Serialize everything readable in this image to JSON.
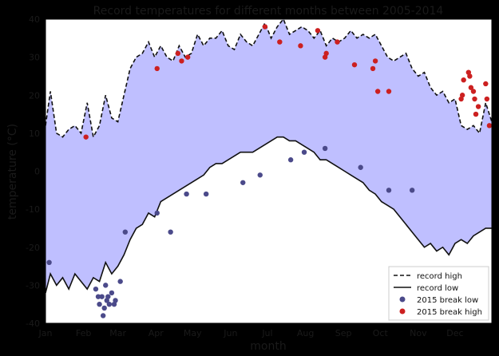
{
  "chart_data": {
    "type": "line",
    "title": "Record temperatures for different months between 2005-2014",
    "xlabel": "month",
    "ylabel": "temperature (°C)",
    "ylim": [
      -40,
      40
    ],
    "y_ticks": [
      "-40",
      "-30",
      "-20",
      "-10",
      "0",
      "10",
      "20",
      "30",
      "40"
    ],
    "categories": [
      "Jan",
      "Feb",
      "Mar",
      "Apr",
      "May",
      "Jun",
      "Jul",
      "Aug",
      "Sep",
      "Oct",
      "Nov",
      "Dec"
    ],
    "x_range_days": [
      1,
      365
    ],
    "fill_color": "#bfbfff",
    "series": [
      {
        "name": "record high",
        "style": "dashed",
        "color": "#111111",
        "x": [
          1,
          5,
          10,
          15,
          20,
          25,
          30,
          35,
          40,
          45,
          50,
          55,
          60,
          65,
          70,
          75,
          80,
          85,
          90,
          95,
          100,
          105,
          110,
          115,
          120,
          125,
          130,
          135,
          140,
          145,
          150,
          155,
          160,
          165,
          170,
          175,
          180,
          185,
          190,
          195,
          200,
          205,
          210,
          215,
          220,
          225,
          230,
          235,
          240,
          245,
          250,
          255,
          260,
          265,
          270,
          275,
          280,
          285,
          290,
          295,
          300,
          305,
          310,
          315,
          320,
          325,
          330,
          335,
          340,
          345,
          350,
          355,
          360,
          365
        ],
        "values": [
          12,
          21,
          10,
          9,
          11,
          12,
          10,
          18,
          9,
          12,
          20,
          14,
          13,
          20,
          27,
          30,
          31,
          34,
          30,
          33,
          30,
          29,
          33,
          30,
          31,
          36,
          33,
          35,
          35,
          37,
          33,
          32,
          36,
          34,
          33,
          36,
          39,
          35,
          38,
          40,
          36,
          37,
          38,
          37,
          35,
          37,
          33,
          35,
          34,
          35,
          37,
          35,
          36,
          35,
          36,
          33,
          30,
          29,
          30,
          31,
          27,
          25,
          26,
          22,
          20,
          21,
          18,
          19,
          12,
          11,
          12,
          10,
          18,
          13
        ]
      },
      {
        "name": "record low",
        "style": "solid",
        "color": "#111111",
        "x": [
          1,
          5,
          10,
          15,
          20,
          25,
          30,
          35,
          40,
          45,
          50,
          55,
          60,
          65,
          70,
          75,
          80,
          85,
          90,
          95,
          100,
          105,
          110,
          115,
          120,
          125,
          130,
          135,
          140,
          145,
          150,
          155,
          160,
          165,
          170,
          175,
          180,
          185,
          190,
          195,
          200,
          205,
          210,
          215,
          220,
          225,
          230,
          235,
          240,
          245,
          250,
          255,
          260,
          265,
          270,
          275,
          280,
          285,
          290,
          295,
          300,
          305,
          310,
          315,
          320,
          325,
          330,
          335,
          340,
          345,
          350,
          355,
          360,
          365
        ],
        "values": [
          -32,
          -27,
          -30,
          -28,
          -31,
          -27,
          -29,
          -31,
          -28,
          -29,
          -24,
          -27,
          -25,
          -22,
          -18,
          -15,
          -14,
          -11,
          -12,
          -8,
          -7,
          -6,
          -5,
          -4,
          -3,
          -2,
          -1,
          1,
          2,
          2,
          3,
          4,
          5,
          5,
          5,
          6,
          7,
          8,
          9,
          9,
          8,
          8,
          7,
          6,
          5,
          3,
          3,
          2,
          1,
          0,
          -1,
          -2,
          -3,
          -5,
          -6,
          -8,
          -9,
          -10,
          -12,
          -14,
          -16,
          -18,
          -20,
          -19,
          -21,
          -20,
          -22,
          -19,
          -18,
          -19,
          -17,
          -16,
          -15,
          -15
        ]
      },
      {
        "name": "2015 break low",
        "type": "scatter",
        "color": "#4b4a8a",
        "x": [
          4,
          42,
          44,
          45,
          47,
          48,
          49,
          50,
          51,
          52,
          53,
          55,
          57,
          58,
          62,
          66,
          92,
          103,
          116,
          132,
          162,
          176,
          201,
          212,
          229,
          258,
          281,
          300
        ],
        "values": [
          -24,
          -31,
          -33,
          -35,
          -33,
          -38,
          -36,
          -30,
          -34,
          -33,
          -35,
          -32,
          -35,
          -34,
          -29,
          -16,
          -11,
          -16,
          -6,
          -6,
          -3,
          -1,
          3,
          5,
          6,
          1,
          -5,
          -5
        ]
      },
      {
        "name": "2015 break high",
        "type": "scatter",
        "color": "#cc2020",
        "x": [
          34,
          92,
          109,
          112,
          117,
          180,
          192,
          209,
          223,
          229,
          230,
          239,
          253,
          268,
          270,
          272,
          281,
          340,
          341,
          342,
          346,
          347,
          348,
          350,
          351,
          352,
          354,
          360,
          361,
          363
        ],
        "values": [
          9,
          27,
          31,
          29,
          30,
          38,
          34,
          33,
          37,
          30,
          31,
          34,
          28,
          27,
          29,
          21,
          21,
          19,
          20,
          24,
          26,
          25,
          22,
          21,
          19,
          15,
          17,
          23,
          19,
          12
        ]
      }
    ],
    "legend": {
      "position": "bottom-right",
      "entries": [
        "record high",
        "record low",
        "2015 break low",
        "2015 break high"
      ]
    }
  }
}
